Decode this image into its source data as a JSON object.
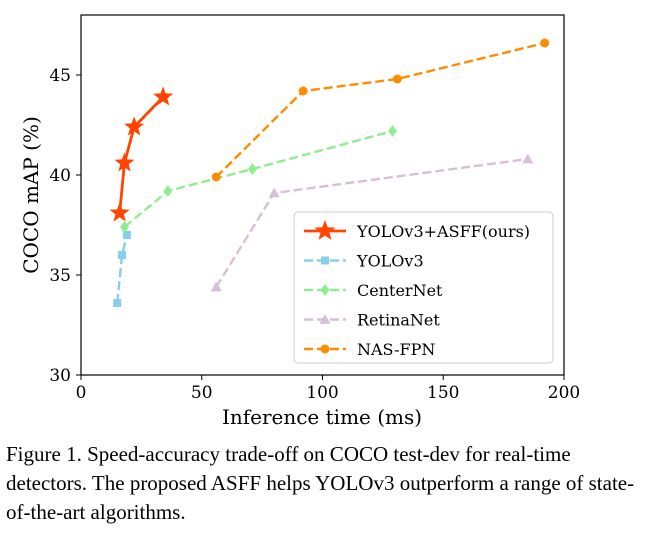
{
  "chart_data": {
    "type": "line",
    "title": "",
    "xlabel": "Inference time (ms)",
    "ylabel": "COCO mAP (%)",
    "xlim": [
      0,
      200
    ],
    "ylim": [
      30,
      48
    ],
    "xticks": [
      0,
      50,
      100,
      150,
      200
    ],
    "yticks": [
      30,
      35,
      40,
      45
    ],
    "legend_position": "lower-right",
    "series": [
      {
        "name": "YOLOv3+ASFF(ours)",
        "color": "#ff4500",
        "marker": "star",
        "linestyle": "solid",
        "x": [
          16,
          18,
          22,
          34
        ],
        "y": [
          38.1,
          40.6,
          42.4,
          43.9
        ]
      },
      {
        "name": "YOLOv3",
        "color": "#87ceeb",
        "marker": "square",
        "linestyle": "dashed",
        "x": [
          15,
          17,
          19
        ],
        "y": [
          33.6,
          36.0,
          37.0
        ]
      },
      {
        "name": "CenterNet",
        "color": "#90ee90",
        "marker": "diamond",
        "linestyle": "dashed",
        "x": [
          18,
          36,
          71,
          129
        ],
        "y": [
          37.4,
          39.2,
          40.3,
          42.2
        ]
      },
      {
        "name": "RetinaNet",
        "color": "#d8bfd8",
        "marker": "triangle",
        "linestyle": "dashed",
        "x": [
          56,
          80,
          185
        ],
        "y": [
          34.4,
          39.1,
          40.8
        ]
      },
      {
        "name": "NAS-FPN",
        "color": "#ff8c00",
        "marker": "circle",
        "linestyle": "dashed",
        "x": [
          56,
          92,
          131,
          192
        ],
        "y": [
          39.9,
          44.2,
          44.8,
          46.6
        ]
      }
    ]
  },
  "caption": "Figure 1. Speed-accuracy trade-off on COCO test-dev for real-time detectors. The proposed ASFF helps YOLOv3 outperform a range of state-of-the-art algorithms."
}
